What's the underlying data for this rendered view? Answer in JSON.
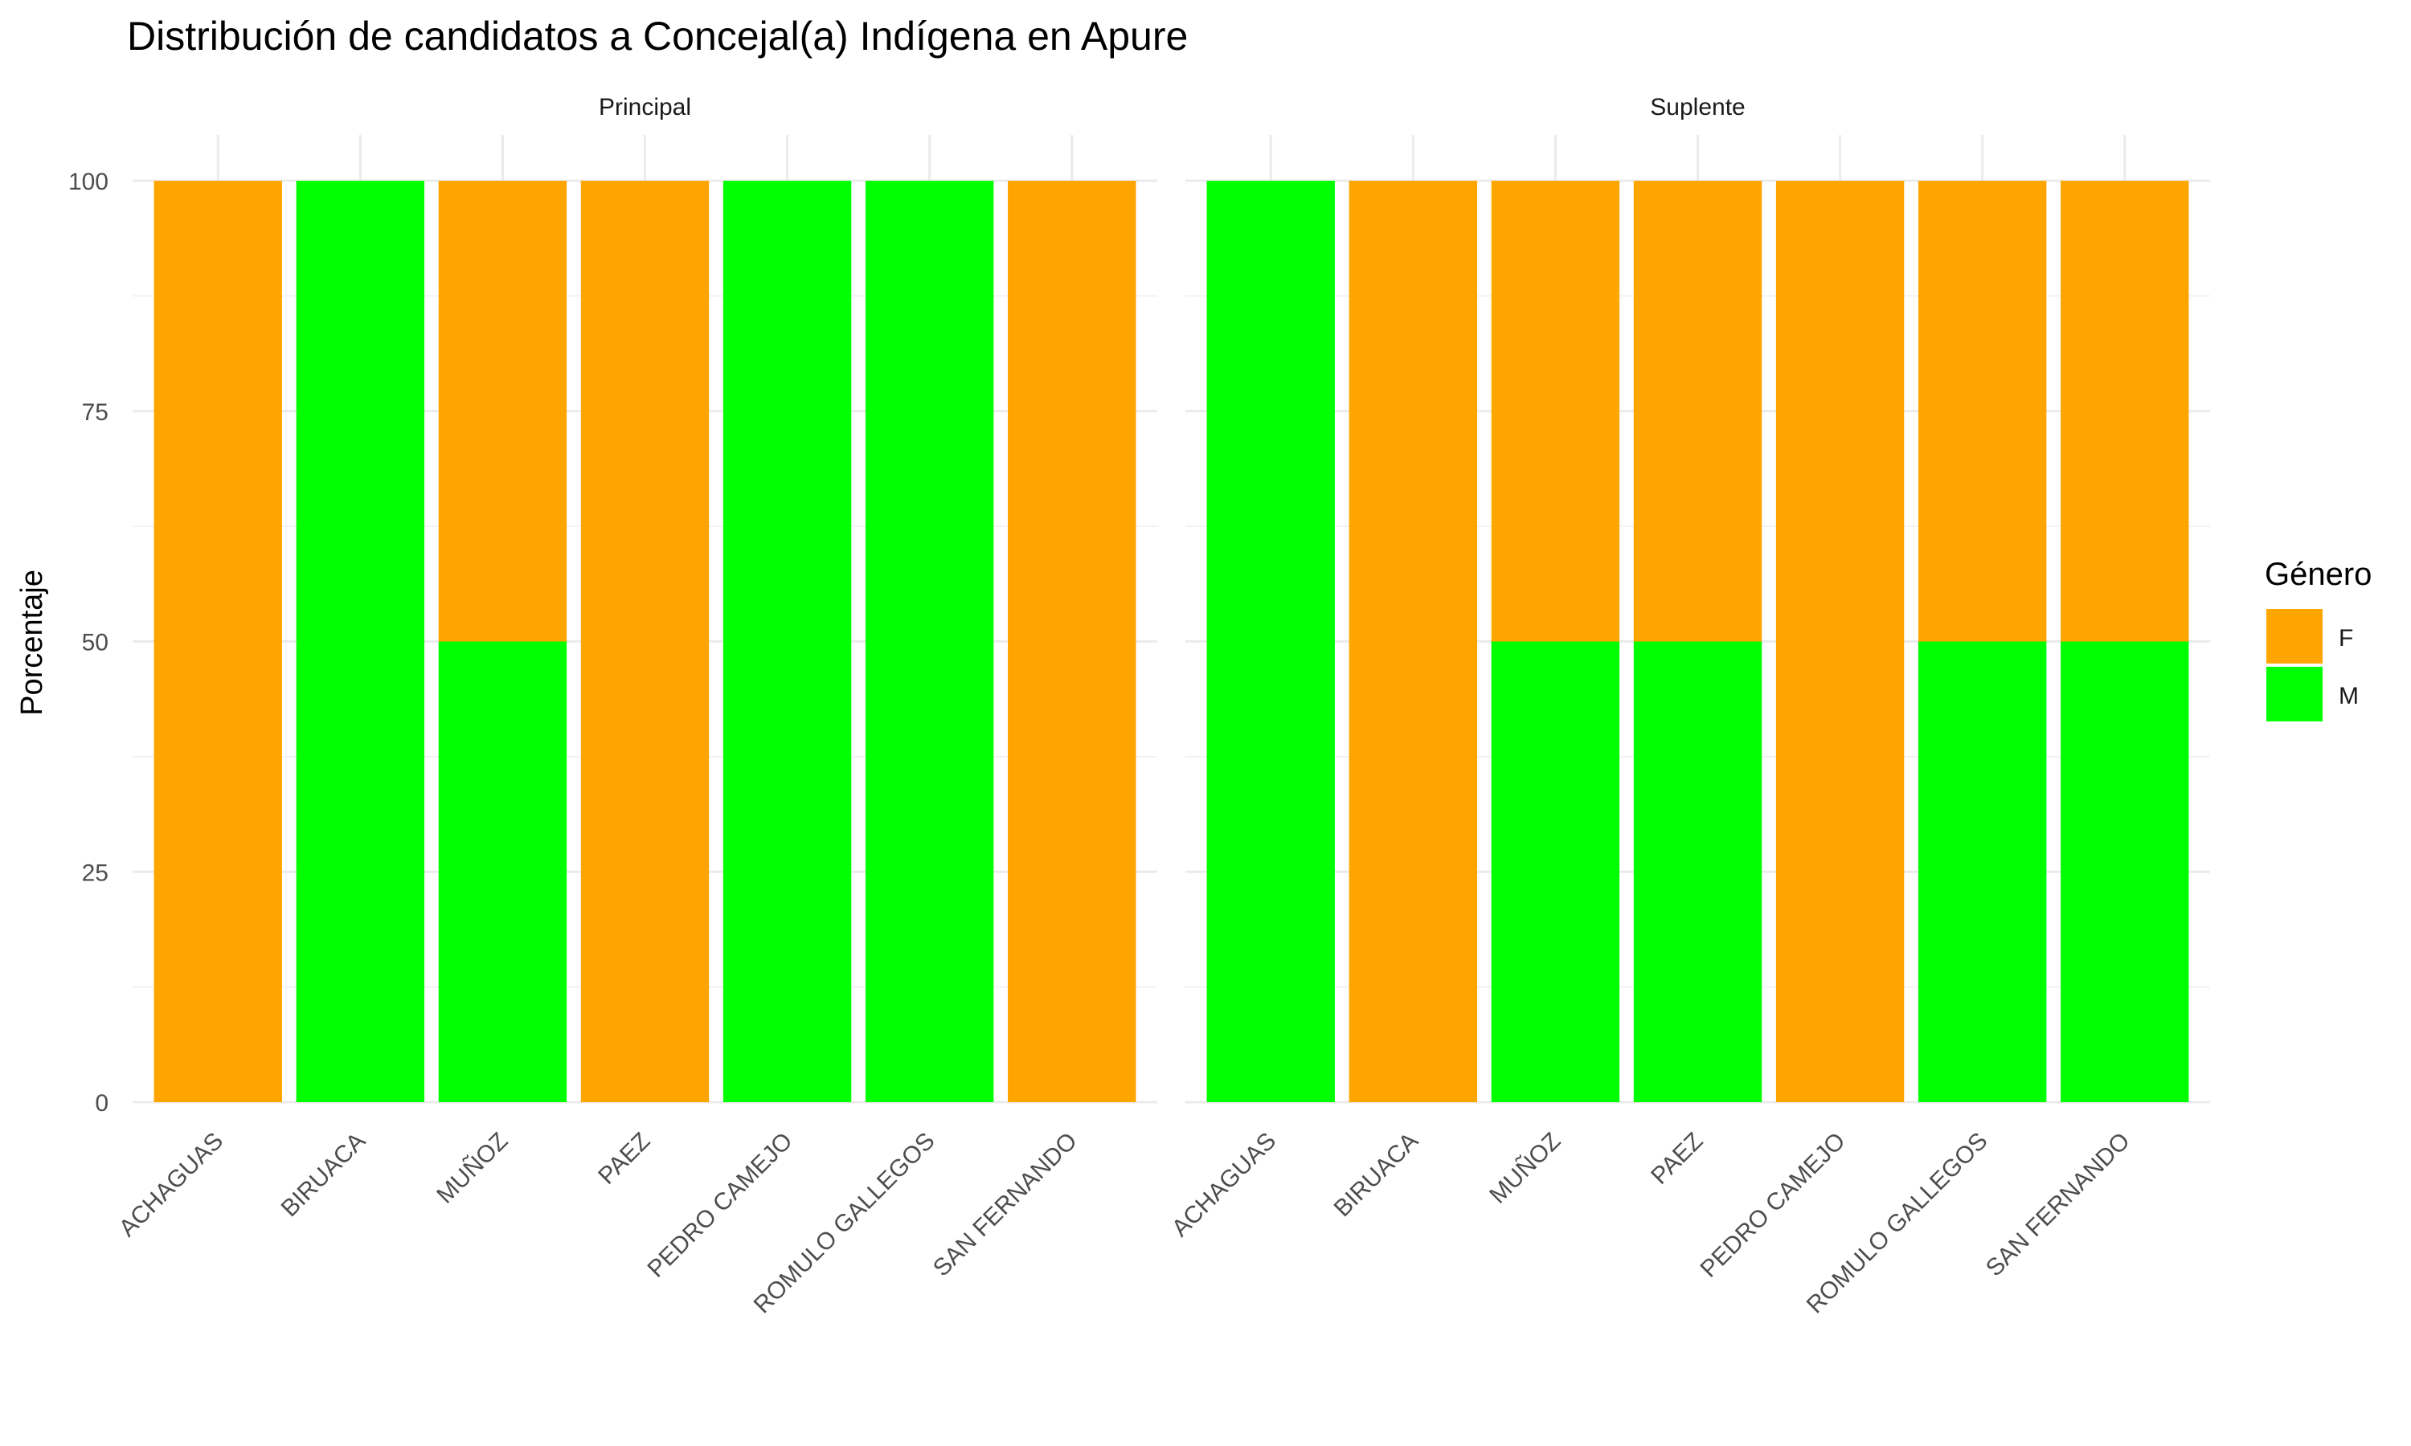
{
  "chart_data": {
    "type": "bar",
    "stacked": true,
    "title": "Distribución de candidatos a Concejal(a) Indígena en Apure",
    "ylabel": "Porcentaje",
    "xlabel": "",
    "ylim": [
      0,
      100
    ],
    "yticks": [
      0,
      25,
      50,
      75,
      100
    ],
    "grid": true,
    "legend_position": "right",
    "legend": {
      "title": "Género",
      "entries": [
        {
          "key": "F",
          "label": "F",
          "color": "#FFA500"
        },
        {
          "key": "M",
          "label": "M",
          "color": "#00FF00"
        }
      ]
    },
    "facets": [
      {
        "label": "Principal",
        "categories": [
          "ACHAGUAS",
          "BIRUACA",
          "MUÑOZ",
          "PAEZ",
          "PEDRO CAMEJO",
          "ROMULO GALLEGOS",
          "SAN FERNANDO"
        ],
        "series": [
          {
            "key": "M",
            "values": [
              0,
              100,
              50,
              0,
              100,
              100,
              0
            ]
          },
          {
            "key": "F",
            "values": [
              100,
              0,
              50,
              100,
              0,
              0,
              100
            ]
          }
        ]
      },
      {
        "label": "Suplente",
        "categories": [
          "ACHAGUAS",
          "BIRUACA",
          "MUÑOZ",
          "PAEZ",
          "PEDRO CAMEJO",
          "ROMULO GALLEGOS",
          "SAN FERNANDO"
        ],
        "series": [
          {
            "key": "M",
            "values": [
              100,
              0,
              50,
              50,
              0,
              50,
              50
            ]
          },
          {
            "key": "F",
            "values": [
              0,
              100,
              50,
              50,
              100,
              50,
              50
            ]
          }
        ]
      }
    ]
  }
}
